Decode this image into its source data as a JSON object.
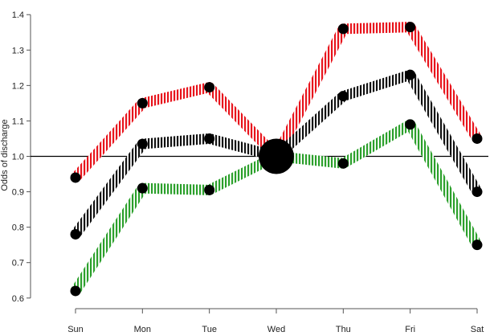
{
  "chart_data": {
    "type": "line",
    "title": "",
    "xlabel": "",
    "ylabel": "Odds of discharge",
    "categories": [
      "Sun",
      "Mon",
      "Tue",
      "Wed",
      "Thu",
      "Fri",
      "Sat"
    ],
    "ylim": [
      0.57,
      1.43
    ],
    "yticks": [
      0.6,
      0.7,
      0.8,
      0.9,
      1.0,
      1.1,
      1.2,
      1.3,
      1.4
    ],
    "ytick_labels": [
      "0.6",
      "0.7",
      "0.8",
      "0.9",
      "1.0",
      "1.1",
      "1.2",
      "1.3",
      "1.4"
    ],
    "reference_line": 1.0,
    "reference_category": "Wed",
    "grid": false,
    "legend": "none",
    "series": [
      {
        "color": "#e8141c",
        "values": [
          0.94,
          1.15,
          1.195,
          1.0,
          1.36,
          1.365,
          1.05
        ]
      },
      {
        "color": "#111111",
        "values": [
          0.78,
          1.035,
          1.05,
          1.0,
          1.17,
          1.23,
          0.9
        ]
      },
      {
        "color": "#2ca02c",
        "values": [
          0.62,
          0.91,
          0.905,
          1.0,
          0.98,
          1.09,
          0.75
        ]
      }
    ]
  }
}
